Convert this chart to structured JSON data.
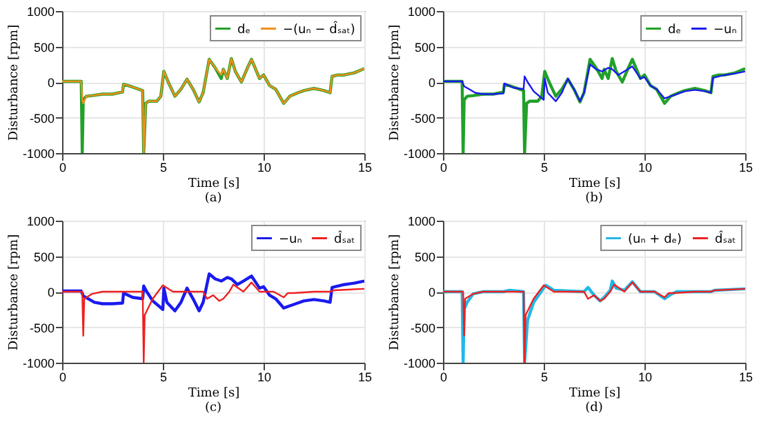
{
  "chart_data": [
    {
      "type": "line",
      "title": "(a)",
      "xlabel": "Time [s]",
      "ylabel": "Disturbance [rpm]",
      "xlim": [
        0,
        15
      ],
      "ylim": [
        -1000,
        1000
      ],
      "xticks": [
        0,
        5,
        10,
        15
      ],
      "yticks": [
        -1000,
        -500,
        0,
        500,
        1000
      ],
      "grid": true,
      "legend": "top right",
      "series": [
        {
          "name": "dₑ",
          "color": "#22a02a",
          "x": [
            0,
            0.95,
            1.0,
            1.05,
            1.2,
            1.5,
            2.0,
            2.5,
            3.0,
            3.05,
            3.5,
            4.0,
            4.05,
            4.15,
            4.3,
            4.7,
            4.9,
            5.05,
            5.3,
            5.6,
            5.9,
            6.2,
            6.5,
            6.8,
            7.0,
            7.3,
            7.6,
            7.9,
            8.0,
            8.2,
            8.4,
            8.6,
            8.9,
            9.2,
            9.4,
            9.8,
            10.0,
            10.3,
            10.6,
            11.0,
            11.3,
            11.7,
            12.0,
            12.5,
            13.0,
            13.3,
            13.4,
            13.7,
            14.0,
            14.5,
            15.0
          ],
          "values": [
            10,
            10,
            -1000,
            -250,
            -200,
            -190,
            -170,
            -170,
            -140,
            -30,
            -70,
            -120,
            -1000,
            -300,
            -270,
            -270,
            -200,
            150,
            -20,
            -200,
            -100,
            40,
            -100,
            -280,
            -150,
            320,
            200,
            50,
            180,
            50,
            330,
            150,
            0,
            200,
            320,
            50,
            100,
            -50,
            -100,
            -300,
            -200,
            -150,
            -120,
            -90,
            -120,
            -150,
            80,
            100,
            100,
            130,
            190
          ]
        },
        {
          "name": "−(uₙ − d̂ₛₐₜ)",
          "color": "#f0901a",
          "x": [
            0,
            0.95,
            1.0,
            1.05,
            1.2,
            1.5,
            2.0,
            2.5,
            3.0,
            3.05,
            3.5,
            4.0,
            4.05,
            4.15,
            4.3,
            4.7,
            4.9,
            5.05,
            5.3,
            5.6,
            5.9,
            6.2,
            6.5,
            6.8,
            7.0,
            7.3,
            7.6,
            7.9,
            8.0,
            8.2,
            8.4,
            8.6,
            8.9,
            9.2,
            9.4,
            9.8,
            10.0,
            10.3,
            10.6,
            11.0,
            11.3,
            11.7,
            12.0,
            12.5,
            13.0,
            13.3,
            13.4,
            13.7,
            14.0,
            14.5,
            15.0
          ],
          "values": [
            10,
            10,
            -250,
            -300,
            -200,
            -190,
            -170,
            -170,
            -140,
            -30,
            -70,
            -120,
            -1000,
            -300,
            -270,
            -270,
            -200,
            150,
            -20,
            -200,
            -100,
            40,
            -100,
            -280,
            -150,
            320,
            200,
            100,
            180,
            50,
            330,
            150,
            0,
            200,
            320,
            50,
            100,
            -50,
            -100,
            -300,
            -200,
            -150,
            -120,
            -90,
            -120,
            -150,
            80,
            100,
            100,
            130,
            190
          ]
        }
      ]
    },
    {
      "type": "line",
      "title": "(b)",
      "xlabel": "Time [s]",
      "ylabel": "Disturbance [rpm]",
      "xlim": [
        0,
        15
      ],
      "ylim": [
        -1000,
        1000
      ],
      "xticks": [
        0,
        5,
        10,
        15
      ],
      "yticks": [
        -1000,
        -500,
        0,
        500,
        1000
      ],
      "grid": true,
      "legend": "top right",
      "series": [
        {
          "name": "dₑ",
          "color": "#22a02a",
          "x": [
            0,
            0.95,
            1.0,
            1.05,
            1.2,
            1.5,
            2.0,
            2.5,
            3.0,
            3.05,
            3.5,
            4.0,
            4.05,
            4.15,
            4.3,
            4.7,
            4.9,
            5.05,
            5.3,
            5.6,
            5.9,
            6.2,
            6.5,
            6.8,
            7.0,
            7.3,
            7.6,
            7.9,
            8.0,
            8.2,
            8.4,
            8.6,
            8.9,
            9.2,
            9.4,
            9.8,
            10.0,
            10.3,
            10.6,
            11.0,
            11.3,
            11.7,
            12.0,
            12.5,
            13.0,
            13.3,
            13.4,
            13.7,
            14.0,
            14.5,
            15.0
          ],
          "values": [
            10,
            10,
            -1000,
            -250,
            -200,
            -190,
            -170,
            -170,
            -140,
            -30,
            -70,
            -120,
            -1000,
            -300,
            -270,
            -270,
            -200,
            150,
            -20,
            -200,
            -100,
            40,
            -100,
            -280,
            -150,
            320,
            200,
            50,
            180,
            50,
            330,
            150,
            0,
            200,
            320,
            50,
            100,
            -50,
            -100,
            -300,
            -200,
            -150,
            -120,
            -90,
            -120,
            -150,
            80,
            100,
            100,
            130,
            190
          ]
        },
        {
          "name": "−uₙ",
          "color": "#1a1aee",
          "x": [
            0,
            0.95,
            1.05,
            1.3,
            1.6,
            2.0,
            2.5,
            3.0,
            3.05,
            3.5,
            4.0,
            4.05,
            4.2,
            4.5,
            5.0,
            5.05,
            5.2,
            5.6,
            5.9,
            6.2,
            6.5,
            6.8,
            7.0,
            7.3,
            7.6,
            7.9,
            8.2,
            8.4,
            8.7,
            9.0,
            9.4,
            9.8,
            10.0,
            10.3,
            10.6,
            11.0,
            11.5,
            12.0,
            12.5,
            13.0,
            13.3,
            13.4,
            14.0,
            14.5,
            15.0
          ],
          "values": [
            10,
            10,
            -60,
            -100,
            -150,
            -170,
            -170,
            -160,
            -20,
            -80,
            -100,
            80,
            0,
            -130,
            -250,
            50,
            -150,
            -270,
            -150,
            50,
            -100,
            -270,
            -150,
            250,
            180,
            150,
            200,
            180,
            100,
            150,
            220,
            50,
            70,
            -50,
            -100,
            -230,
            -180,
            -130,
            -110,
            -130,
            -150,
            60,
            100,
            120,
            150
          ]
        }
      ]
    },
    {
      "type": "line",
      "title": "(c)",
      "xlabel": "Time [s]",
      "ylabel": "Disturbance [rpm]",
      "xlim": [
        0,
        15
      ],
      "ylim": [
        -1000,
        1000
      ],
      "xticks": [
        0,
        5,
        10,
        15
      ],
      "yticks": [
        -1000,
        -500,
        0,
        500,
        1000
      ],
      "grid": true,
      "legend": "top right",
      "series": [
        {
          "name": "−uₙ",
          "color": "#1a1aee",
          "x": [
            0,
            0.95,
            1.05,
            1.3,
            1.6,
            2.0,
            2.5,
            3.0,
            3.05,
            3.5,
            4.0,
            4.05,
            4.2,
            4.5,
            5.0,
            5.05,
            5.2,
            5.6,
            5.9,
            6.2,
            6.5,
            6.8,
            7.0,
            7.3,
            7.6,
            7.9,
            8.2,
            8.4,
            8.7,
            9.0,
            9.4,
            9.8,
            10.0,
            10.3,
            10.6,
            11.0,
            11.5,
            12.0,
            12.5,
            13.0,
            13.3,
            13.4,
            14.0,
            14.5,
            15.0
          ],
          "values": [
            10,
            10,
            -60,
            -100,
            -150,
            -170,
            -170,
            -160,
            -20,
            -80,
            -100,
            80,
            0,
            -130,
            -250,
            50,
            -150,
            -270,
            -150,
            50,
            -100,
            -270,
            -150,
            250,
            180,
            150,
            200,
            180,
            100,
            150,
            220,
            50,
            70,
            -50,
            -100,
            -230,
            -180,
            -130,
            -110,
            -130,
            -150,
            60,
            100,
            120,
            150
          ]
        },
        {
          "name": "d̂ₛₐₜ",
          "color": "#ee2020",
          "x": [
            0,
            1.0,
            1.05,
            1.1,
            1.5,
            2.0,
            4.0,
            4.05,
            4.1,
            4.5,
            5.0,
            5.5,
            7.0,
            7.2,
            7.5,
            7.8,
            8.0,
            8.3,
            8.5,
            9.0,
            9.4,
            9.8,
            10.5,
            11.0,
            11.2,
            11.5,
            12.5,
            13.3,
            13.5,
            15.0
          ],
          "values": [
            0,
            0,
            -620,
            -100,
            -30,
            0,
            0,
            -1000,
            -330,
            -100,
            90,
            0,
            0,
            -100,
            -50,
            -130,
            -100,
            0,
            100,
            0,
            130,
            0,
            0,
            -80,
            -20,
            -20,
            0,
            0,
            20,
            40
          ]
        }
      ]
    },
    {
      "type": "line",
      "title": "(d)",
      "xlabel": "Time [s]",
      "ylabel": "Disturbance [rpm]",
      "xlim": [
        0,
        15
      ],
      "ylim": [
        -1000,
        1000
      ],
      "xticks": [
        0,
        5,
        10,
        15
      ],
      "yticks": [
        -1000,
        -500,
        0,
        500,
        1000
      ],
      "grid": true,
      "legend": "top right",
      "series": [
        {
          "name": "(uₙ + dₑ)",
          "color": "#20b8e8",
          "x": [
            0,
            0.95,
            1.0,
            1.05,
            1.2,
            1.5,
            2.0,
            3.0,
            3.3,
            4.0,
            4.05,
            4.2,
            4.5,
            5.0,
            5.1,
            5.5,
            7.0,
            7.2,
            7.5,
            7.8,
            8.0,
            8.3,
            8.4,
            8.6,
            9.0,
            9.4,
            9.8,
            10.5,
            11.0,
            11.3,
            11.6,
            12.5,
            13.3,
            13.5,
            15.0
          ],
          "values": [
            0,
            0,
            -1000,
            -250,
            -150,
            -30,
            0,
            0,
            20,
            0,
            -1000,
            -400,
            -150,
            50,
            90,
            20,
            0,
            60,
            -50,
            -130,
            -80,
            20,
            150,
            50,
            20,
            140,
            0,
            0,
            -100,
            -40,
            0,
            0,
            0,
            20,
            40
          ]
        },
        {
          "name": "d̂ₛₐₜ",
          "color": "#ee2020",
          "x": [
            0,
            1.0,
            1.05,
            1.1,
            1.5,
            2.0,
            4.0,
            4.05,
            4.1,
            4.5,
            5.0,
            5.5,
            7.0,
            7.2,
            7.5,
            7.8,
            8.0,
            8.3,
            8.5,
            9.0,
            9.4,
            9.8,
            10.5,
            11.0,
            11.2,
            11.5,
            12.5,
            13.3,
            13.5,
            15.0
          ],
          "values": [
            0,
            0,
            -620,
            -100,
            -30,
            0,
            0,
            -1000,
            -330,
            -100,
            90,
            0,
            0,
            -100,
            -50,
            -130,
            -100,
            0,
            100,
            0,
            130,
            0,
            0,
            -80,
            -20,
            -20,
            0,
            0,
            20,
            40
          ]
        }
      ]
    }
  ]
}
